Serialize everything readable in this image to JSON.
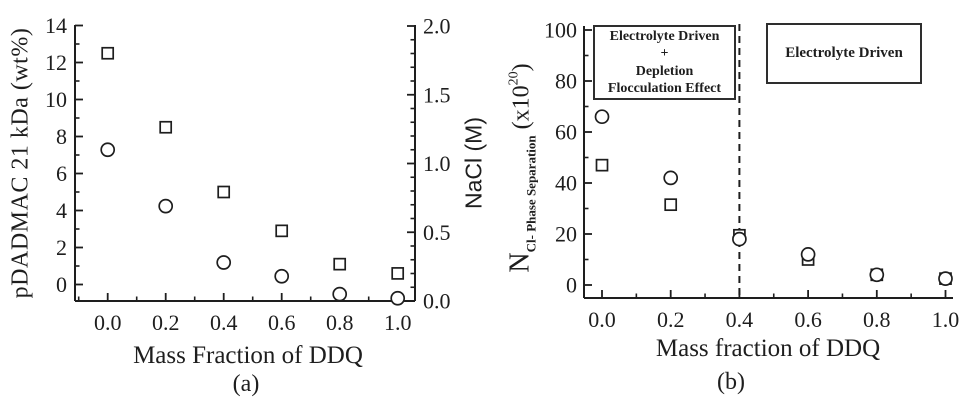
{
  "figure": {
    "background": "#ffffff",
    "ink_color": "#1e1e1e"
  },
  "panel_a": {
    "caption": "(a)",
    "x_axis_title": "Mass Fraction of DDQ",
    "left_axis_title": "pDADMAC 21 kDa (wt%)",
    "right_axis_title": "NaCl (M)"
  },
  "panel_b": {
    "caption": "(b)",
    "x_axis_title": "Mass fraction of DDQ",
    "y_axis_title": {
      "base": "N",
      "sub": "Cl- Phase Separation",
      "scale_pre": "(x10",
      "scale_sup": "20",
      "scale_post": ")"
    },
    "annotation_left": "Electrolyte Driven\n+\nDepletion\nFlocculation Effect",
    "annotation_right": "Electrolyte Driven"
  },
  "chart_data": [
    {
      "id": "a",
      "type": "scatter",
      "title": "",
      "xlabel": "Mass Fraction of DDQ",
      "ylabel_left": "pDADMAC 21 kDa (wt%)",
      "ylabel_right": "NaCl (M)",
      "x": [
        0.0,
        0.2,
        0.4,
        0.6,
        0.8,
        1.0
      ],
      "series": [
        {
          "name": "pDADMAC 21 kDa wt% (open squares, left axis)",
          "marker": "square",
          "axis": "left",
          "values": [
            12.5,
            8.5,
            5.0,
            2.9,
            1.1,
            0.6
          ]
        },
        {
          "name": "NaCl M (open circles, right axis)",
          "marker": "circle",
          "axis": "right",
          "values": [
            1.1,
            0.69,
            0.28,
            0.18,
            0.05,
            0.02
          ]
        }
      ],
      "x_ticks": [
        "0.0",
        "0.2",
        "0.4",
        "0.6",
        "0.8",
        "1.0"
      ],
      "left_ticks": [
        "0",
        "2",
        "4",
        "6",
        "8",
        "10",
        "12",
        "14"
      ],
      "right_ticks": [
        "0.0",
        "0.5",
        "1.0",
        "1.5",
        "2.0"
      ],
      "xlim": [
        -0.11,
        1.06
      ],
      "left_ylim": [
        -0.9,
        14
      ],
      "right_ylim": [
        0,
        2.0
      ],
      "grid": false,
      "legend": "none"
    },
    {
      "id": "b",
      "type": "scatter",
      "title": "",
      "xlabel": "Mass fraction of DDQ",
      "ylabel": "N Cl- Phase Separation (x10^20)",
      "x": [
        0.0,
        0.2,
        0.4,
        0.6,
        0.8,
        1.0
      ],
      "series": [
        {
          "name": "open squares",
          "marker": "square",
          "axis": "left",
          "values": [
            47,
            31.5,
            19.5,
            10,
            4,
            2.5
          ]
        },
        {
          "name": "open circles",
          "marker": "circle",
          "axis": "left",
          "values": [
            66,
            42,
            18,
            12,
            4,
            2.5
          ]
        }
      ],
      "x_ticks": [
        "0.0",
        "0.2",
        "0.4",
        "0.6",
        "0.8",
        "1.0"
      ],
      "y_ticks": [
        "0",
        "20",
        "40",
        "60",
        "80",
        "100"
      ],
      "xlim": [
        -0.05,
        1.02
      ],
      "ylim": [
        -5,
        102
      ],
      "dashed_line_x": 0.4,
      "grid": false,
      "legend": "none",
      "annotations": [
        {
          "text": "Electrolyte Driven\n+\nDepletion\nFlocculation Effect",
          "region": "left of dashed line"
        },
        {
          "text": "Electrolyte Driven",
          "region": "right of dashed line"
        }
      ]
    }
  ]
}
